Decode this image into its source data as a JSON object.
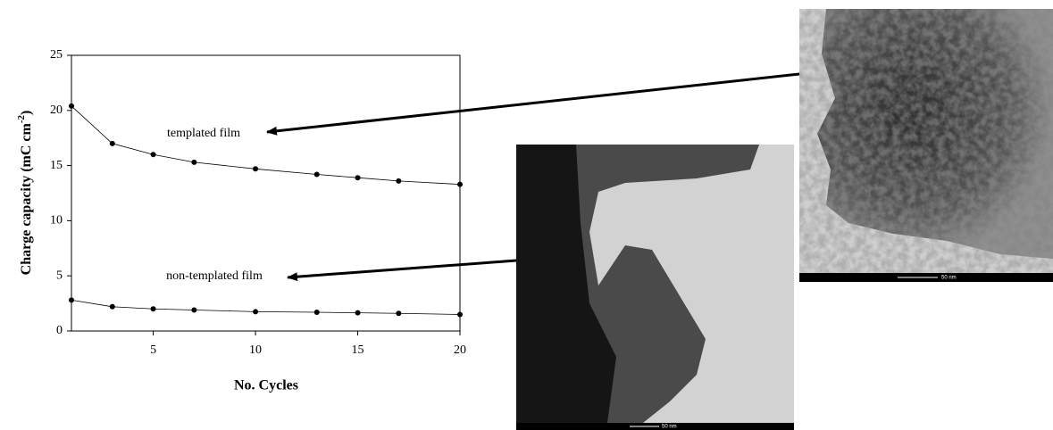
{
  "chart_data": {
    "type": "line",
    "x_label": "No. Cycles",
    "y_label": {
      "text": "Charge capacity (mC cm",
      "sup": "-2",
      "end": ")"
    },
    "x": [
      1,
      3,
      5,
      7,
      10,
      13,
      15,
      17,
      20
    ],
    "series": [
      {
        "name": "templated film",
        "color": "#000000",
        "values": [
          20.4,
          17.0,
          16.0,
          15.3,
          14.7,
          14.2,
          13.9,
          13.6,
          13.3
        ]
      },
      {
        "name": "non-templated film",
        "color": "#000000",
        "values": [
          2.8,
          2.2,
          2.0,
          1.9,
          1.75,
          1.7,
          1.65,
          1.6,
          1.5
        ]
      }
    ],
    "xlim": [
      1,
      20
    ],
    "xticks": [
      5,
      10,
      15,
      20
    ],
    "ylim": [
      0,
      25
    ],
    "yticks": [
      0,
      5,
      10,
      15,
      20,
      25
    ],
    "grid": false,
    "images": [
      {
        "scale_label": "50 nm"
      },
      {
        "scale_label": "50 nm"
      }
    ]
  }
}
